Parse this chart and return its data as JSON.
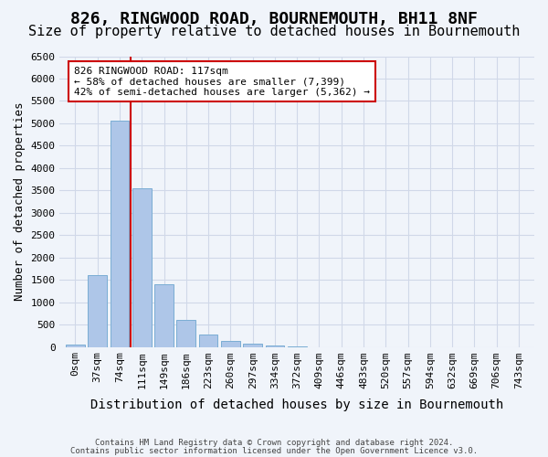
{
  "title": "826, RINGWOOD ROAD, BOURNEMOUTH, BH11 8NF",
  "subtitle": "Size of property relative to detached houses in Bournemouth",
  "xlabel": "Distribution of detached houses by size in Bournemouth",
  "ylabel": "Number of detached properties",
  "footnote1": "Contains HM Land Registry data © Crown copyright and database right 2024.",
  "footnote2": "Contains public sector information licensed under the Open Government Licence v3.0.",
  "bin_labels": [
    "0sqm",
    "37sqm",
    "74sqm",
    "111sqm",
    "149sqm",
    "186sqm",
    "223sqm",
    "260sqm",
    "297sqm",
    "334sqm",
    "372sqm",
    "409sqm",
    "446sqm",
    "483sqm",
    "520sqm",
    "557sqm",
    "594sqm",
    "632sqm",
    "669sqm",
    "706sqm",
    "743sqm"
  ],
  "bar_values": [
    50,
    1600,
    5050,
    3550,
    1400,
    600,
    280,
    130,
    80,
    30,
    5,
    0,
    0,
    0,
    0,
    0,
    0,
    0,
    0,
    0,
    0
  ],
  "bar_color": "#aec6e8",
  "bar_edge_color": "#7aadd4",
  "grid_color": "#d0d8e8",
  "bg_color": "#f0f4fa",
  "vline_color": "#cc0000",
  "annotation_text": "826 RINGWOOD ROAD: 117sqm\n← 58% of detached houses are smaller (7,399)\n42% of semi-detached houses are larger (5,362) →",
  "annotation_box_color": "#cc0000",
  "ylim": [
    0,
    6500
  ],
  "yticks": [
    0,
    500,
    1000,
    1500,
    2000,
    2500,
    3000,
    3500,
    4000,
    4500,
    5000,
    5500,
    6000,
    6500
  ],
  "title_fontsize": 13,
  "subtitle_fontsize": 11,
  "axis_fontsize": 9,
  "tick_fontsize": 8,
  "footnote_fontsize": 6.5
}
